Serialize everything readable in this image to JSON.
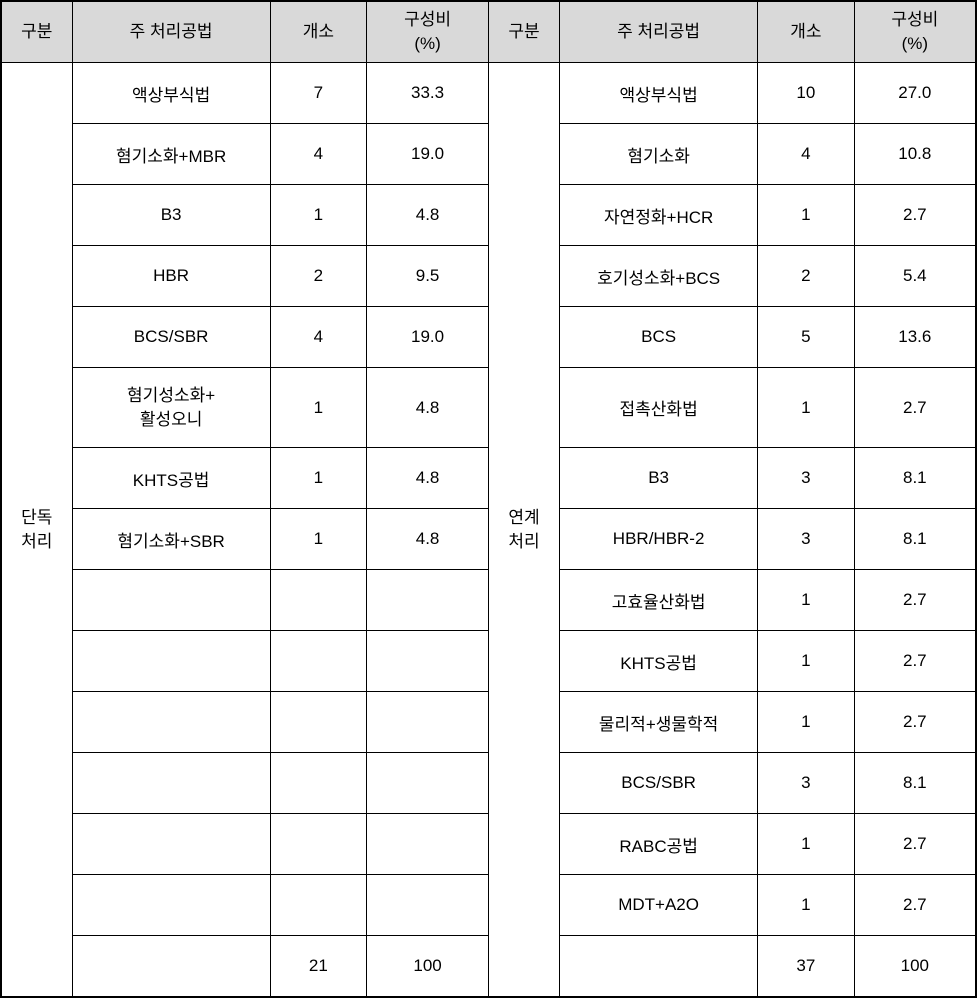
{
  "header": {
    "gubun": "구분",
    "method": "주 처리공법",
    "count": "개소",
    "ratio_line1": "구성비",
    "ratio_line2": "(%)"
  },
  "left": {
    "category_line1": "단독",
    "category_line2": "처리",
    "rows": [
      {
        "method": "액상부식법",
        "count": "7",
        "ratio": "33.3"
      },
      {
        "method": "혐기소화+MBR",
        "count": "4",
        "ratio": "19.0"
      },
      {
        "method": "B3",
        "count": "1",
        "ratio": "4.8"
      },
      {
        "method": "HBR",
        "count": "2",
        "ratio": "9.5"
      },
      {
        "method": "BCS/SBR",
        "count": "4",
        "ratio": "19.0"
      },
      {
        "method_line1": "혐기성소화+",
        "method_line2": "활성오니",
        "count": "1",
        "ratio": "4.8"
      },
      {
        "method": "KHTS공법",
        "count": "1",
        "ratio": "4.8"
      },
      {
        "method": "혐기소화+SBR",
        "count": "1",
        "ratio": "4.8"
      },
      {
        "method": "",
        "count": "",
        "ratio": ""
      },
      {
        "method": "",
        "count": "",
        "ratio": ""
      },
      {
        "method": "",
        "count": "",
        "ratio": ""
      },
      {
        "method": "",
        "count": "",
        "ratio": ""
      },
      {
        "method": "",
        "count": "",
        "ratio": ""
      },
      {
        "method": "",
        "count": "",
        "ratio": ""
      },
      {
        "method": "",
        "count": "21",
        "ratio": "100"
      }
    ]
  },
  "right": {
    "category_line1": "연계",
    "category_line2": "처리",
    "rows": [
      {
        "method": "액상부식법",
        "count": "10",
        "ratio": "27.0"
      },
      {
        "method": "혐기소화",
        "count": "4",
        "ratio": "10.8"
      },
      {
        "method": "자연정화+HCR",
        "count": "1",
        "ratio": "2.7"
      },
      {
        "method": "호기성소화+BCS",
        "count": "2",
        "ratio": "5.4"
      },
      {
        "method": "BCS",
        "count": "5",
        "ratio": "13.6"
      },
      {
        "method": "접촉산화법",
        "count": "1",
        "ratio": "2.7"
      },
      {
        "method": "B3",
        "count": "3",
        "ratio": "8.1"
      },
      {
        "method": "HBR/HBR-2",
        "count": "3",
        "ratio": "8.1"
      },
      {
        "method": "고효율산화법",
        "count": "1",
        "ratio": "2.7"
      },
      {
        "method": "KHTS공법",
        "count": "1",
        "ratio": "2.7"
      },
      {
        "method": "물리적+생물학적",
        "count": "1",
        "ratio": "2.7"
      },
      {
        "method": "BCS/SBR",
        "count": "3",
        "ratio": "8.1"
      },
      {
        "method": "RABC공법",
        "count": "1",
        "ratio": "2.7"
      },
      {
        "method": "MDT+A2O",
        "count": "1",
        "ratio": "2.7"
      },
      {
        "method": "",
        "count": "37",
        "ratio": "100"
      }
    ]
  },
  "style": {
    "header_bg": "#d9d9d9",
    "border_color": "#000000",
    "text_color": "#000000",
    "font_size": 17
  }
}
